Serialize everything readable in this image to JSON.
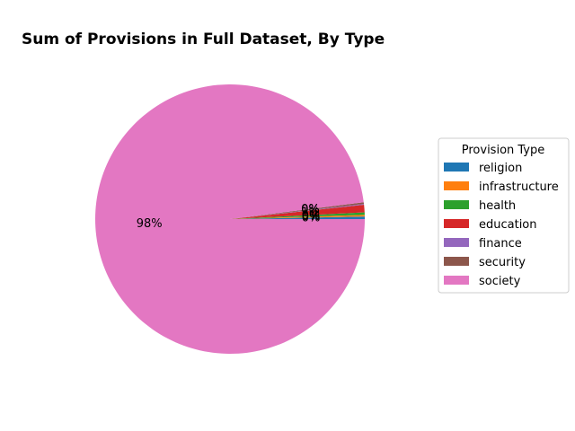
{
  "chart_data": {
    "type": "pie",
    "title": "Sum of Provisions in Full Dataset, By Type",
    "legend": {
      "title": "Provision Type",
      "placement": "center-right"
    },
    "categories": [
      "religion",
      "infrastructure",
      "health",
      "education",
      "finance",
      "security",
      "society"
    ],
    "values": [
      0.3,
      0.2,
      0.3,
      0.9,
      0.1,
      0.2,
      98.0
    ],
    "percent_labels": [
      "0%",
      "0%",
      "0%",
      "1%",
      "0%",
      "0%",
      "98%"
    ],
    "colors": [
      "#1f77b4",
      "#ff7f0e",
      "#2ca02c",
      "#d62728",
      "#9467bd",
      "#8c564b",
      "#e377c2"
    ],
    "start_angle_deg": 0,
    "direction": "counterclockwise"
  }
}
